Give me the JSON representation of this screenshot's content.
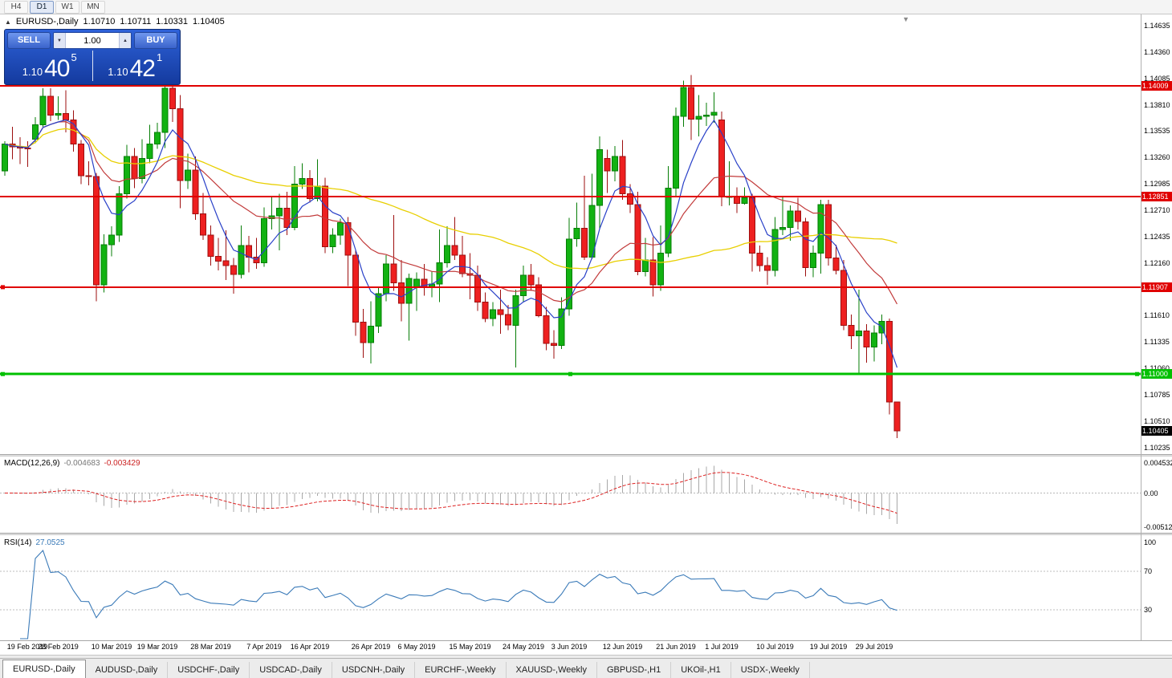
{
  "toolbar": {
    "timeframes": [
      {
        "label": "H4",
        "active": false
      },
      {
        "label": "D1",
        "active": true
      },
      {
        "label": "W1",
        "active": false
      },
      {
        "label": "MN",
        "active": false
      }
    ]
  },
  "icons": {
    "collapse": "▲",
    "spinner_up": "▲",
    "spinner_down": "▼",
    "shift_marker": "▼"
  },
  "chart_header": {
    "symbol": "EURUSD-,Daily",
    "open": "1.10710",
    "high": "1.10711",
    "low": "1.10331",
    "close": "1.10405"
  },
  "trade_panel": {
    "sell_label": "SELL",
    "buy_label": "BUY",
    "volume": "1.00",
    "bid": {
      "prefix": "1.10",
      "big": "40",
      "sup": "5"
    },
    "ask": {
      "prefix": "1.10",
      "big": "42",
      "sup": "1"
    }
  },
  "price_axis": {
    "ticks": [
      "1.14635",
      "1.14360",
      "1.14085",
      "1.13810",
      "1.13535",
      "1.13260",
      "1.12985",
      "1.12710",
      "1.12435",
      "1.12160",
      "1.11885",
      "1.11610",
      "1.11335",
      "1.11060",
      "1.10785",
      "1.10510",
      "1.10235"
    ]
  },
  "chart_data": {
    "type": "candlestick",
    "symbol": "EURUSD",
    "period": "Daily",
    "candles_ohlc": [
      [
        1.1312,
        1.1343,
        1.1307,
        1.134
      ],
      [
        1.134,
        1.1358,
        1.1324,
        1.1337
      ],
      [
        1.1337,
        1.1347,
        1.1319,
        1.1336
      ],
      [
        1.1336,
        1.1343,
        1.1316,
        1.1335
      ],
      [
        1.1345,
        1.1368,
        1.1341,
        1.136
      ],
      [
        1.136,
        1.1398,
        1.1358,
        1.139
      ],
      [
        1.139,
        1.1398,
        1.1364,
        1.137
      ],
      [
        1.137,
        1.139,
        1.1365,
        1.1372
      ],
      [
        1.1372,
        1.1396,
        1.1352,
        1.1365
      ],
      [
        1.1365,
        1.1375,
        1.1332,
        1.134
      ],
      [
        1.134,
        1.1344,
        1.1298,
        1.1307
      ],
      [
        1.1307,
        1.1322,
        1.1297,
        1.1306
      ],
      [
        1.1306,
        1.131,
        1.1176,
        1.1193
      ],
      [
        1.1193,
        1.1246,
        1.1185,
        1.1235
      ],
      [
        1.1235,
        1.1254,
        1.1223,
        1.1245
      ],
      [
        1.1245,
        1.1296,
        1.1238,
        1.1288
      ],
      [
        1.1288,
        1.1339,
        1.1283,
        1.1327
      ],
      [
        1.1327,
        1.1336,
        1.1294,
        1.1304
      ],
      [
        1.1304,
        1.1345,
        1.1299,
        1.1325
      ],
      [
        1.1325,
        1.136,
        1.132,
        1.134
      ],
      [
        1.134,
        1.1362,
        1.1335,
        1.1352
      ],
      [
        1.1352,
        1.1405,
        1.1336,
        1.1398
      ],
      [
        1.1398,
        1.1408,
        1.1363,
        1.1377
      ],
      [
        1.1377,
        1.1391,
        1.1273,
        1.1302
      ],
      [
        1.1302,
        1.133,
        1.1293,
        1.1313
      ],
      [
        1.1313,
        1.1327,
        1.1261,
        1.1267
      ],
      [
        1.1267,
        1.1289,
        1.124,
        1.1245
      ],
      [
        1.1245,
        1.1255,
        1.1213,
        1.1223
      ],
      [
        1.1223,
        1.1242,
        1.1208,
        1.1218
      ],
      [
        1.1218,
        1.125,
        1.1198,
        1.1213
      ],
      [
        1.1213,
        1.1221,
        1.1184,
        1.1204
      ],
      [
        1.1204,
        1.1255,
        1.12,
        1.1234
      ],
      [
        1.1234,
        1.1244,
        1.1206,
        1.1222
      ],
      [
        1.1222,
        1.1242,
        1.121,
        1.1216
      ],
      [
        1.1216,
        1.1274,
        1.1212,
        1.1262
      ],
      [
        1.1262,
        1.1285,
        1.1251,
        1.1265
      ],
      [
        1.1265,
        1.1288,
        1.1229,
        1.1273
      ],
      [
        1.1273,
        1.129,
        1.1245,
        1.1253
      ],
      [
        1.1253,
        1.1317,
        1.125,
        1.1298
      ],
      [
        1.1298,
        1.132,
        1.1293,
        1.1304
      ],
      [
        1.1304,
        1.1313,
        1.1279,
        1.1283
      ],
      [
        1.1283,
        1.1324,
        1.128,
        1.1296
      ],
      [
        1.1296,
        1.1305,
        1.1226,
        1.1233
      ],
      [
        1.1233,
        1.1252,
        1.1226,
        1.1245
      ],
      [
        1.1245,
        1.1262,
        1.1235,
        1.1258
      ],
      [
        1.1258,
        1.1264,
        1.1192,
        1.1224
      ],
      [
        1.1224,
        1.123,
        1.114,
        1.1154
      ],
      [
        1.1154,
        1.1168,
        1.1117,
        1.1133
      ],
      [
        1.1133,
        1.1176,
        1.1111,
        1.115
      ],
      [
        1.115,
        1.119,
        1.1143,
        1.1184
      ],
      [
        1.1184,
        1.1224,
        1.1176,
        1.1215
      ],
      [
        1.1215,
        1.1266,
        1.1187,
        1.1195
      ],
      [
        1.1195,
        1.1219,
        1.1155,
        1.1174
      ],
      [
        1.1174,
        1.1205,
        1.1135,
        1.12
      ],
      [
        1.119,
        1.1206,
        1.1166,
        1.1199
      ],
      [
        1.1199,
        1.1215,
        1.1182,
        1.1191
      ],
      [
        1.1191,
        1.1207,
        1.118,
        1.1194
      ],
      [
        1.1194,
        1.1251,
        1.1175,
        1.1216
      ],
      [
        1.1216,
        1.1254,
        1.1211,
        1.1234
      ],
      [
        1.1234,
        1.1264,
        1.1219,
        1.1224
      ],
      [
        1.1224,
        1.1244,
        1.1201,
        1.1205
      ],
      [
        1.1205,
        1.1226,
        1.1178,
        1.1203
      ],
      [
        1.1203,
        1.1213,
        1.1166,
        1.1175
      ],
      [
        1.1175,
        1.1185,
        1.1154,
        1.1158
      ],
      [
        1.1158,
        1.1175,
        1.115,
        1.1167
      ],
      [
        1.1167,
        1.1188,
        1.1142,
        1.1162
      ],
      [
        1.1162,
        1.1172,
        1.1146,
        1.1151
      ],
      [
        1.1151,
        1.1188,
        1.1107,
        1.1182
      ],
      [
        1.1182,
        1.1213,
        1.1175,
        1.1203
      ],
      [
        1.1203,
        1.1215,
        1.1187,
        1.1193
      ],
      [
        1.1193,
        1.1201,
        1.1159,
        1.1161
      ],
      [
        1.1161,
        1.117,
        1.1125,
        1.1132
      ],
      [
        1.1132,
        1.1146,
        1.1116,
        1.113
      ],
      [
        1.113,
        1.118,
        1.1126,
        1.1168
      ],
      [
        1.1168,
        1.1263,
        1.1161,
        1.1241
      ],
      [
        1.1241,
        1.1279,
        1.1233,
        1.1252
      ],
      [
        1.1252,
        1.1307,
        1.1219,
        1.1222
      ],
      [
        1.1222,
        1.1309,
        1.122,
        1.1276
      ],
      [
        1.1276,
        1.1348,
        1.1251,
        1.1334
      ],
      [
        1.1325,
        1.1334,
        1.1289,
        1.1312
      ],
      [
        1.1312,
        1.1338,
        1.1301,
        1.1327
      ],
      [
        1.1327,
        1.1344,
        1.1282,
        1.1288
      ],
      [
        1.1288,
        1.1298,
        1.1268,
        1.1277
      ],
      [
        1.1277,
        1.129,
        1.1203,
        1.1207
      ],
      [
        1.1207,
        1.1242,
        1.1202,
        1.1219
      ],
      [
        1.1219,
        1.1243,
        1.1181,
        1.1193
      ],
      [
        1.1193,
        1.1255,
        1.1187,
        1.1226
      ],
      [
        1.1226,
        1.1317,
        1.1222,
        1.1294
      ],
      [
        1.1294,
        1.1378,
        1.1286,
        1.1369
      ],
      [
        1.1369,
        1.1406,
        1.1358,
        1.1399
      ],
      [
        1.1399,
        1.1412,
        1.1344,
        1.1366
      ],
      [
        1.1366,
        1.1391,
        1.1348,
        1.1369
      ],
      [
        1.1369,
        1.1383,
        1.1359,
        1.137
      ],
      [
        1.137,
        1.1394,
        1.1362,
        1.1373
      ],
      [
        1.1365,
        1.1374,
        1.1275,
        1.1285
      ],
      [
        1.1285,
        1.1322,
        1.1276,
        1.1285
      ],
      [
        1.1285,
        1.1295,
        1.1268,
        1.1278
      ],
      [
        1.1278,
        1.1295,
        1.1277,
        1.1284
      ],
      [
        1.1284,
        1.1288,
        1.1207,
        1.1226
      ],
      [
        1.1226,
        1.1234,
        1.1207,
        1.1213
      ],
      [
        1.1213,
        1.1222,
        1.1193,
        1.1208
      ],
      [
        1.1208,
        1.1264,
        1.1202,
        1.1251
      ],
      [
        1.1251,
        1.1286,
        1.1245,
        1.1253
      ],
      [
        1.1253,
        1.1276,
        1.1239,
        1.127
      ],
      [
        1.127,
        1.1284,
        1.1251,
        1.1259
      ],
      [
        1.1259,
        1.1263,
        1.1202,
        1.1211
      ],
      [
        1.1211,
        1.1234,
        1.1201,
        1.1226
      ],
      [
        1.1226,
        1.1282,
        1.1205,
        1.1277
      ],
      [
        1.1277,
        1.1282,
        1.1213,
        1.1221
      ],
      [
        1.1221,
        1.1235,
        1.1204,
        1.1208
      ],
      [
        1.1208,
        1.1219,
        1.1146,
        1.1151
      ],
      [
        1.1151,
        1.1162,
        1.1126,
        1.114
      ],
      [
        1.114,
        1.1188,
        1.1101,
        1.1145
      ],
      [
        1.1145,
        1.1152,
        1.1112,
        1.1128
      ],
      [
        1.1128,
        1.1151,
        1.1113,
        1.1143
      ],
      [
        1.1143,
        1.1162,
        1.1131,
        1.1155
      ],
      [
        1.1155,
        1.1158,
        1.1058,
        1.1071
      ],
      [
        1.1071,
        1.10711,
        1.10331,
        1.10405
      ]
    ],
    "date_labels": [
      {
        "text": "19 Feb 2019",
        "candle_index": 0
      },
      {
        "text": "28 Feb 2019",
        "candle_index": 7
      },
      {
        "text": "10 Mar 2019",
        "candle_index": 14
      },
      {
        "text": "19 Mar 2019",
        "candle_index": 20
      },
      {
        "text": "28 Mar 2019",
        "candle_index": 27
      },
      {
        "text": "7 Apr 2019",
        "candle_index": 34
      },
      {
        "text": "16 Apr 2019",
        "candle_index": 40
      },
      {
        "text": "26 Apr 2019",
        "candle_index": 48
      },
      {
        "text": "6 May 2019",
        "candle_index": 54
      },
      {
        "text": "15 May 2019",
        "candle_index": 61
      },
      {
        "text": "24 May 2019",
        "candle_index": 68
      },
      {
        "text": "3 Jun 2019",
        "candle_index": 74
      },
      {
        "text": "12 Jun 2019",
        "candle_index": 81
      },
      {
        "text": "21 Jun 2019",
        "candle_index": 88
      },
      {
        "text": "1 Jul 2019",
        "candle_index": 94
      },
      {
        "text": "10 Jul 2019",
        "candle_index": 101
      },
      {
        "text": "19 Jul 2019",
        "candle_index": 108
      },
      {
        "text": "29 Jul 2019",
        "candle_index": 114
      }
    ],
    "levels": [
      {
        "value": 1.14009,
        "label": "1.14009",
        "color": "#e00000",
        "kind": "resistance",
        "width": 2,
        "handles": []
      },
      {
        "value": 1.12851,
        "label": "1.12851",
        "color": "#e00000",
        "kind": "resistance",
        "width": 2,
        "handles": []
      },
      {
        "value": 1.11907,
        "label": "1.11907",
        "color": "#e00000",
        "kind": "resistance",
        "width": 2,
        "handles": [
          "left"
        ]
      },
      {
        "value": 1.11,
        "label": "1.11000",
        "color": "#00c000",
        "kind": "support",
        "width": 3,
        "handles": [
          "left",
          "center",
          "right"
        ]
      }
    ],
    "current_price": {
      "value": 1.10405,
      "label": "1.10405",
      "badge_color": "#000000"
    },
    "moving_averages": [
      {
        "name": "fast",
        "period": 8,
        "color": "#2940c8"
      },
      {
        "name": "medium",
        "period": 24,
        "color": "#c23b3b"
      },
      {
        "name": "slow",
        "period": 50,
        "color": "#e8cf00"
      }
    ],
    "indicators": {
      "macd": {
        "label": "MACD(12,26,9)",
        "value_main": "-0.004683",
        "value_signal": "-0.003429",
        "fast": 12,
        "slow": 26,
        "signal": 9,
        "axis_labels": [
          "0.004532",
          "0.00",
          "-0.005122"
        ]
      },
      "rsi": {
        "label": "RSI(14)",
        "value": "27.0525",
        "period": 14,
        "axis_labels": [
          "100",
          "70",
          "30"
        ],
        "levels": [
          70,
          30
        ]
      }
    }
  },
  "tabs": [
    {
      "label": "EURUSD-,Daily",
      "active": true
    },
    {
      "label": "AUDUSD-,Daily",
      "active": false
    },
    {
      "label": "USDCHF-,Daily",
      "active": false
    },
    {
      "label": "USDCAD-,Daily",
      "active": false
    },
    {
      "label": "USDCNH-,Daily",
      "active": false
    },
    {
      "label": "EURCHF-,Weekly",
      "active": false
    },
    {
      "label": "XAUUSD-,Weekly",
      "active": false
    },
    {
      "label": "GBPUSD-,H1",
      "active": false
    },
    {
      "label": "UKOil-,H1",
      "active": false
    },
    {
      "label": "USDX-,Weekly",
      "active": false
    }
  ],
  "colors": {
    "bull": "#12b212",
    "bull_border": "#067d06",
    "bear": "#ee2020",
    "bear_border": "#9d0f0f",
    "hist": "#a8a8a8",
    "signal": "#dd2222",
    "rsi_line": "#3a7ab8",
    "rsi_levels": "#bdbdbd",
    "zero_line": "#b8b8b8"
  }
}
